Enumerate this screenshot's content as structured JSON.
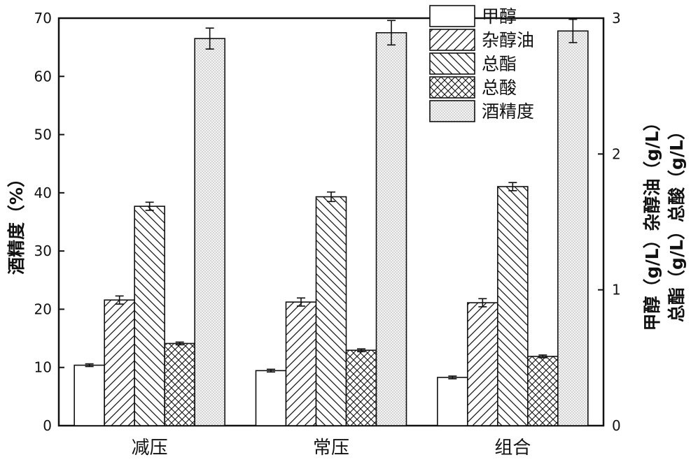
{
  "chart_data": {
    "type": "bar",
    "categories": [
      "减压",
      "常压",
      "组合"
    ],
    "left_axis": {
      "label": "酒精度（%）",
      "ylim": [
        0,
        70
      ],
      "ticks": [
        "0",
        "10",
        "20",
        "30",
        "40",
        "50",
        "60",
        "70"
      ]
    },
    "right_axis": {
      "label_line1": "甲醇（g/L）杂醇油（g/L）",
      "label_line2": "总酯（g/L）总酸（g/L）",
      "ylim": [
        0,
        3
      ],
      "ticks": [
        "0",
        "1",
        "2",
        "3"
      ]
    },
    "series": [
      {
        "name": "甲醇",
        "axis": "right",
        "pattern": "none",
        "values": [
          0.445,
          0.405,
          0.355
        ],
        "errors": [
          0.01,
          0.01,
          0.01
        ]
      },
      {
        "name": "杂醇油",
        "axis": "right",
        "pattern": "hatch-forward",
        "values": [
          0.925,
          0.91,
          0.905
        ],
        "errors": [
          0.03,
          0.03,
          0.03
        ]
      },
      {
        "name": "总酯",
        "axis": "right",
        "pattern": "hatch-back",
        "values": [
          1.615,
          1.685,
          1.76
        ],
        "errors": [
          0.03,
          0.035,
          0.03
        ]
      },
      {
        "name": "总酸",
        "axis": "right",
        "pattern": "crosshatch",
        "values": [
          0.605,
          0.555,
          0.51
        ],
        "errors": [
          0.01,
          0.01,
          0.01
        ]
      },
      {
        "name": "酒精度",
        "axis": "left",
        "pattern": "dots",
        "values": [
          66.5,
          67.5,
          67.8
        ],
        "errors": [
          1.8,
          2.1,
          2.0
        ]
      }
    ],
    "legend": {
      "placement": "top-right"
    },
    "grid": false
  }
}
